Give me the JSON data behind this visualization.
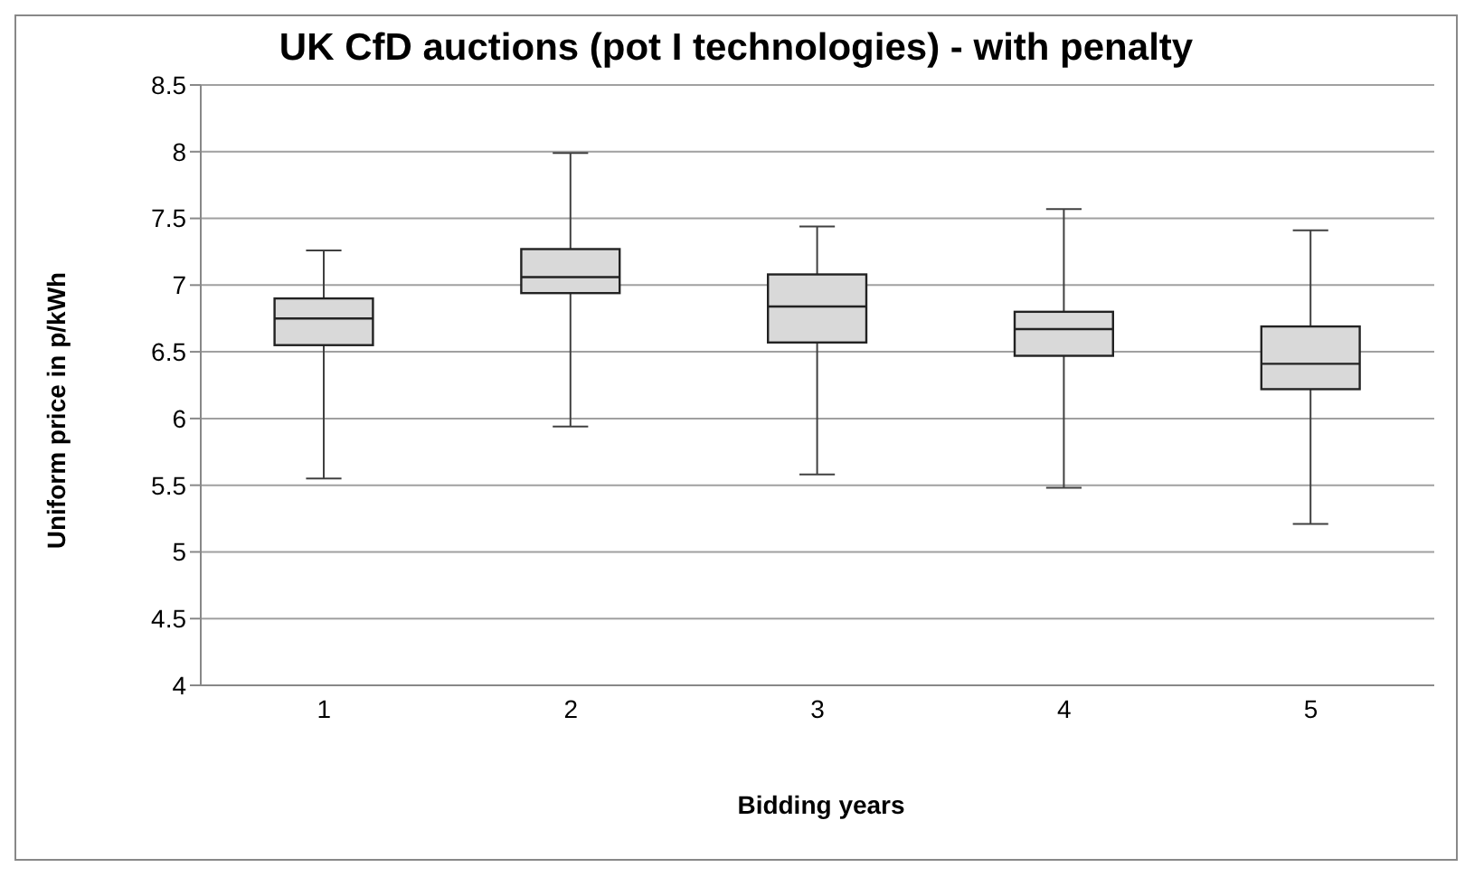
{
  "chart_data": {
    "type": "box",
    "title": "UK CfD auctions (pot I technologies) - with penalty",
    "xlabel": "Bidding years",
    "ylabel": "Uniform price in p/kWh",
    "categories": [
      "1",
      "2",
      "3",
      "4",
      "5"
    ],
    "color": "#d9d9d9",
    "boxes": [
      {
        "low": 5.55,
        "q1": 6.55,
        "median": 6.75,
        "q3": 6.9,
        "high": 7.26
      },
      {
        "low": 5.94,
        "q1": 6.94,
        "median": 7.06,
        "q3": 7.27,
        "high": 7.99
      },
      {
        "low": 5.58,
        "q1": 6.57,
        "median": 6.84,
        "q3": 7.08,
        "high": 7.44
      },
      {
        "low": 5.48,
        "q1": 6.47,
        "median": 6.67,
        "q3": 6.8,
        "high": 7.57
      },
      {
        "low": 5.21,
        "q1": 6.22,
        "median": 6.41,
        "q3": 6.69,
        "high": 7.41
      }
    ],
    "ylim": [
      4,
      8.5
    ],
    "yticks": [
      4,
      4.5,
      5,
      5.5,
      6,
      6.5,
      7,
      7.5,
      8,
      8.5
    ],
    "grid": "y"
  }
}
